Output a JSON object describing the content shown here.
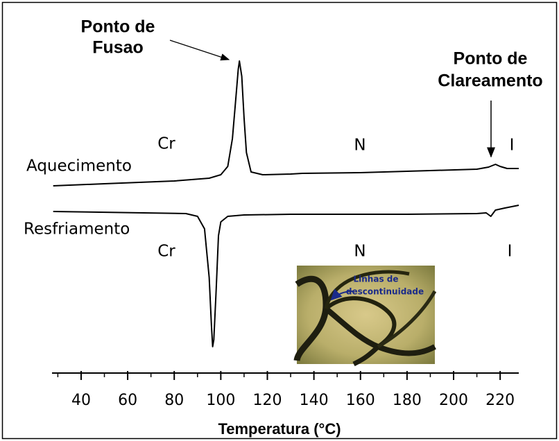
{
  "chart_data": {
    "type": "line",
    "x_label": "Temperatura (°C)",
    "xlim": [
      27.5,
      228
    ],
    "ylim": [
      0,
      100
    ],
    "xticks": [
      40,
      60,
      80,
      100,
      120,
      140,
      160,
      180,
      200,
      220
    ],
    "xminorticks": [
      30,
      50,
      70,
      90,
      110,
      130,
      150,
      170,
      190,
      210
    ],
    "series": [
      {
        "name": "Aquecimento",
        "color": "#000000",
        "x": [
          28,
          50,
          80,
          95,
          100,
          103,
          105,
          106.5,
          107.5,
          108,
          109,
          110,
          111,
          113,
          118,
          130,
          135,
          160,
          190,
          210,
          215,
          218,
          220,
          223,
          228
        ],
        "values": [
          50.4,
          51,
          51.8,
          52.6,
          53.6,
          56,
          64,
          76,
          84,
          86.4,
          82,
          70,
          60,
          54.4,
          53.6,
          53.8,
          54,
          54.2,
          54.8,
          55.2,
          55.8,
          56.6,
          56,
          55.4,
          55.4
        ]
      },
      {
        "name": "Resfriamento",
        "color": "#000000",
        "x": [
          28,
          85,
          90,
          93,
          95,
          96,
          96.5,
          97,
          98,
          99,
          100,
          103,
          110,
          130,
          150,
          180,
          210,
          214,
          216,
          218,
          222,
          228
        ],
        "values": [
          43,
          42.4,
          41.6,
          38,
          24,
          10,
          4,
          6,
          20,
          36,
          40,
          41.6,
          42,
          42.2,
          42.2,
          42.2,
          42.4,
          42.6,
          41.6,
          43.4,
          44,
          44.8
        ]
      }
    ],
    "annotations": {
      "melting": [
        "Ponto de",
        "Fusao"
      ],
      "clearing": [
        "Ponto de",
        "Clareamento"
      ],
      "heating_phases": [
        "Cr",
        "N",
        "I"
      ],
      "cooling_phases": [
        "Cr",
        "N",
        "I"
      ],
      "inset": [
        "Linhas de",
        "descontinuidade"
      ]
    }
  }
}
